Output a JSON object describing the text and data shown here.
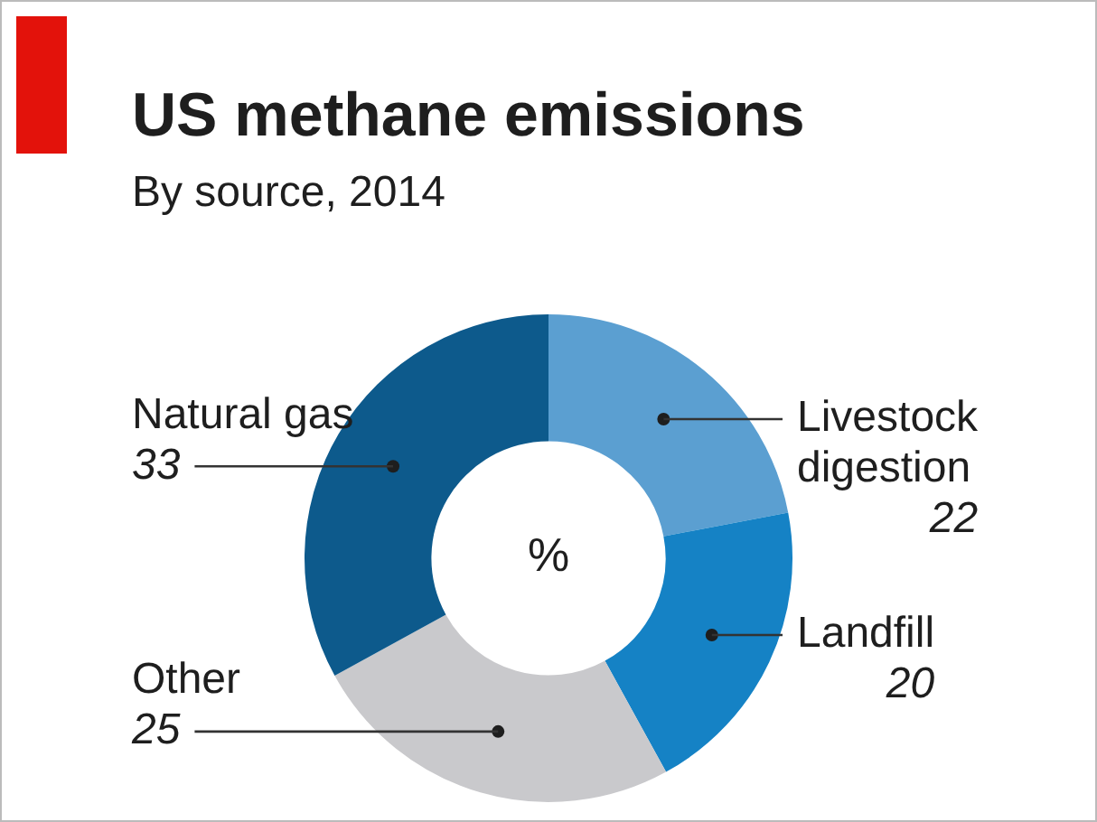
{
  "chart_data": {
    "type": "donut",
    "title": "US methane emissions",
    "subtitle": "By source, 2014",
    "categories": [
      "Livestock digestion",
      "Landfill",
      "Other",
      "Natural gas"
    ],
    "values": [
      22,
      20,
      25,
      33
    ],
    "colors": [
      "#5b9fd1",
      "#1582c5",
      "#c9c9cc",
      "#0d5a8c"
    ],
    "data_labels": true,
    "legend": false,
    "annotations": [
      "%"
    ]
  }
}
